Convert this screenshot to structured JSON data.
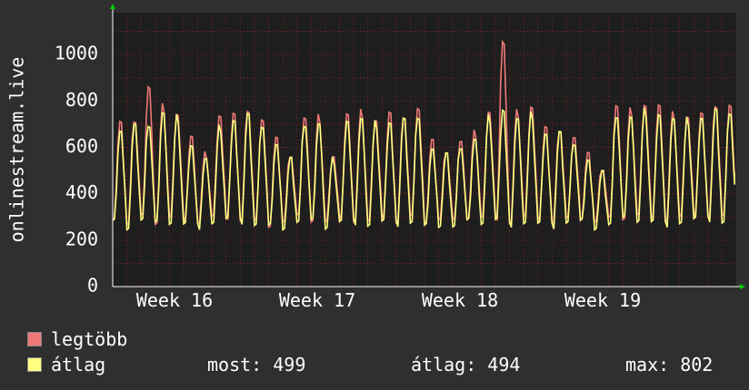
{
  "chart_data": {
    "type": "line",
    "ylabel": "onlinestream.live",
    "y_ticks": [
      0,
      200,
      400,
      600,
      800,
      1000
    ],
    "ylim": [
      0,
      1180
    ],
    "x_ticks": [
      "Week 16",
      "Week 17",
      "Week 18",
      "Week 19"
    ],
    "grid": true,
    "cycles": 44,
    "series": [
      {
        "name": "legtöbb",
        "color": "#f07878",
        "daily_peaks": [
          720,
          740,
          885,
          800,
          770,
          660,
          580,
          760,
          760,
          790,
          740,
          650,
          580,
          745,
          750,
          580,
          760,
          770,
          740,
          765,
          760,
          790,
          640,
          600,
          640,
          680,
          780,
          1085,
          770,
          800,
          700,
          700,
          660,
          580,
          520,
          800,
          780,
          810,
          800,
          760,
          755,
          760,
          810,
          805
        ],
        "daily_troughs": [
          300,
          270,
          300,
          280,
          300,
          290,
          280,
          300,
          300,
          290,
          280,
          270,
          280,
          300,
          290,
          280,
          300,
          290,
          280,
          300,
          280,
          300,
          280,
          290,
          280,
          300,
          300,
          300,
          280,
          300,
          290,
          280,
          290,
          300,
          280,
          290,
          300,
          310,
          300,
          290,
          300,
          310,
          310,
          300
        ]
      },
      {
        "name": "átlag",
        "color": "#ffff80",
        "daily_peaks": [
          690,
          710,
          720,
          770,
          750,
          630,
          560,
          700,
          740,
          760,
          720,
          630,
          560,
          720,
          720,
          560,
          740,
          740,
          720,
          730,
          740,
          760,
          610,
          580,
          620,
          650,
          750,
          790,
          740,
          760,
          680,
          680,
          640,
          560,
          500,
          760,
          750,
          780,
          770,
          740,
          735,
          750,
          780,
          780
        ],
        "daily_troughs": [
          280,
          260,
          290,
          270,
          280,
          270,
          260,
          280,
          290,
          280,
          270,
          260,
          260,
          280,
          280,
          260,
          280,
          280,
          270,
          280,
          270,
          280,
          260,
          270,
          260,
          280,
          280,
          290,
          270,
          280,
          270,
          260,
          280,
          280,
          260,
          270,
          290,
          290,
          280,
          270,
          280,
          290,
          290,
          280
        ]
      }
    ]
  },
  "legend": {
    "max_label": "legtöbb",
    "avg_label": "átlag",
    "now_label": "most:",
    "now_value": "499",
    "avg_stat_label": "átlag:",
    "avg_stat_value": "494",
    "max_stat_label": "max:",
    "max_stat_value": "802"
  },
  "colors": {
    "background": "#2f2f2f",
    "plot_background": "#1e1e1e",
    "grid": "#8a2020",
    "axis_arrow": "#00cc00"
  }
}
